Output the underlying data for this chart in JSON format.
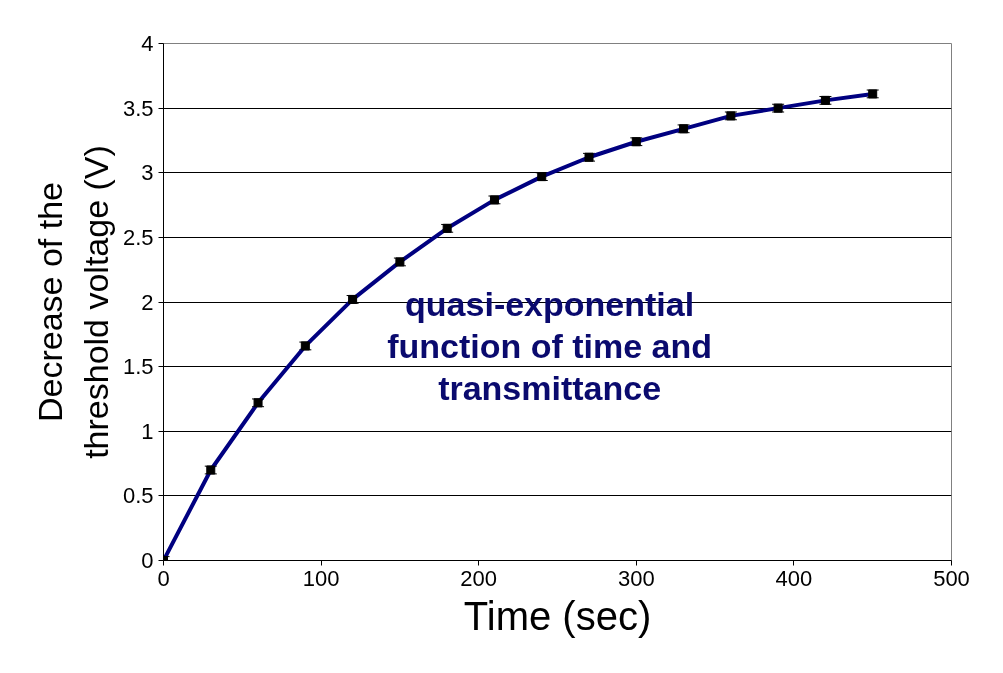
{
  "chart_data": {
    "type": "line",
    "xlabel": "Time (sec)",
    "ylabel": "Decrease of the threshold voltage (V)",
    "x": [
      0,
      30,
      60,
      90,
      120,
      150,
      180,
      210,
      240,
      270,
      300,
      330,
      360,
      390,
      420,
      450
    ],
    "series": [
      {
        "color": "#000080",
        "values": [
          0,
          0.7,
          1.22,
          1.66,
          2.02,
          2.31,
          2.57,
          2.79,
          2.97,
          3.12,
          3.24,
          3.34,
          3.44,
          3.5,
          3.56,
          3.61
        ],
        "errors": [
          0.03,
          0.03,
          0.03,
          0.03,
          0.03,
          0.03,
          0.03,
          0.03,
          0.03,
          0.03,
          0.03,
          0.03,
          0.03,
          0.03,
          0.03,
          0.03
        ]
      }
    ],
    "marker": "square",
    "line_style": "solid",
    "grid": "y",
    "xlim": [
      0,
      500
    ],
    "xticks": [
      0,
      100,
      200,
      300,
      400,
      500
    ],
    "ylim": [
      0,
      4
    ],
    "yticks": [
      0,
      0.5,
      1,
      1.5,
      2,
      2.5,
      3,
      3.5,
      4
    ],
    "annotations": [
      "quasi-exponential function of time and transmittance"
    ]
  }
}
